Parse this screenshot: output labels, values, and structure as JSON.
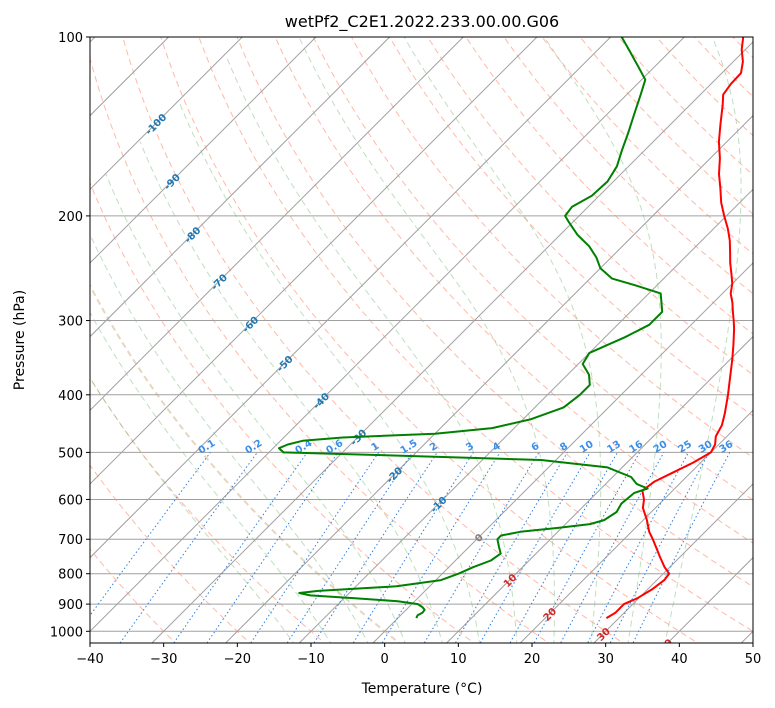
{
  "chart_data": {
    "type": "line",
    "subtype": "skew-t log-p",
    "title": "wetPf2_C2E1.2022.233.00.00.G06",
    "xlabel": "Temperature (°C)",
    "ylabel": "Pressure (hPa)",
    "xlim": [
      -40,
      50
    ],
    "ylim": [
      1050,
      100
    ],
    "y_scale": "log",
    "x_ticks": [
      "−40",
      "−30",
      "−20",
      "−10",
      "0",
      "10",
      "20",
      "30",
      "40",
      "50"
    ],
    "y_ticks": [
      "100",
      "200",
      "300",
      "400",
      "500",
      "600",
      "700",
      "800",
      "900",
      "1000"
    ],
    "grid": true,
    "series": [
      {
        "role": "temperature",
        "color": "#ff0000",
        "points": [
          [
            950,
            28.3
          ],
          [
            930,
            28.8
          ],
          [
            900,
            28.8
          ],
          [
            880,
            29.8
          ],
          [
            850,
            30.6
          ],
          [
            820,
            31.0
          ],
          [
            800,
            30.8
          ],
          [
            780,
            29.3
          ],
          [
            750,
            27.3
          ],
          [
            720,
            25.3
          ],
          [
            700,
            23.9
          ],
          [
            680,
            22.4
          ],
          [
            650,
            20.5
          ],
          [
            620,
            18.3
          ],
          [
            600,
            17.3
          ],
          [
            580,
            15.9
          ],
          [
            560,
            16.3
          ],
          [
            540,
            17.6
          ],
          [
            520,
            19.0
          ],
          [
            500,
            20.0
          ],
          [
            485,
            19.5
          ],
          [
            470,
            18.5
          ],
          [
            450,
            17.8
          ],
          [
            430,
            16.6
          ],
          [
            400,
            14.5
          ],
          [
            370,
            12.1
          ],
          [
            350,
            10.4
          ],
          [
            330,
            8.5
          ],
          [
            310,
            6.4
          ],
          [
            300,
            5.2
          ],
          [
            290,
            3.9
          ],
          [
            280,
            2.6
          ],
          [
            270,
            1.1
          ],
          [
            260,
            0.0
          ],
          [
            250,
            -1.5
          ],
          [
            240,
            -3.1
          ],
          [
            230,
            -4.6
          ],
          [
            220,
            -6.2
          ],
          [
            210,
            -8.1
          ],
          [
            200,
            -10.3
          ],
          [
            190,
            -12.5
          ],
          [
            180,
            -14.5
          ],
          [
            170,
            -16.7
          ],
          [
            160,
            -18.7
          ],
          [
            150,
            -21.1
          ],
          [
            140,
            -23.3
          ],
          [
            130,
            -25.6
          ],
          [
            125,
            -26.9
          ],
          [
            120,
            -27.3
          ],
          [
            115,
            -27.4
          ],
          [
            110,
            -28.7
          ],
          [
            105,
            -30.5
          ],
          [
            100,
            -32.0
          ]
        ]
      },
      {
        "role": "dewpoint",
        "color": "#008000",
        "points": [
          [
            950,
            2.5
          ],
          [
            940,
            2.3
          ],
          [
            930,
            2.6
          ],
          [
            920,
            2.5
          ],
          [
            910,
            1.8
          ],
          [
            900,
            0.8
          ],
          [
            890,
            -2.3
          ],
          [
            880,
            -8.5
          ],
          [
            870,
            -15.0
          ],
          [
            862,
            -16.8
          ],
          [
            855,
            -14.5
          ],
          [
            840,
            -4.5
          ],
          [
            820,
            0.7
          ],
          [
            800,
            2.2
          ],
          [
            780,
            3.3
          ],
          [
            760,
            4.8
          ],
          [
            740,
            5.2
          ],
          [
            720,
            4.0
          ],
          [
            700,
            2.8
          ],
          [
            690,
            2.8
          ],
          [
            680,
            4.9
          ],
          [
            670,
            9.5
          ],
          [
            660,
            13.3
          ],
          [
            650,
            14.7
          ],
          [
            630,
            15.3
          ],
          [
            610,
            14.8
          ],
          [
            600,
            14.9
          ],
          [
            585,
            15.1
          ],
          [
            575,
            16.3
          ],
          [
            565,
            14.2
          ],
          [
            550,
            12.5
          ],
          [
            530,
            8.0
          ],
          [
            515,
            -2.0
          ],
          [
            505,
            -25.0
          ],
          [
            500,
            -38.0
          ],
          [
            492,
            -39.2
          ],
          [
            485,
            -38.5
          ],
          [
            478,
            -37.0
          ],
          [
            472,
            -32.0
          ],
          [
            465,
            -20.0
          ],
          [
            455,
            -13.0
          ],
          [
            440,
            -9.0
          ],
          [
            420,
            -6.1
          ],
          [
            400,
            -5.6
          ],
          [
            385,
            -5.6
          ],
          [
            370,
            -7.1
          ],
          [
            355,
            -9.4
          ],
          [
            340,
            -10.0
          ],
          [
            320,
            -7.3
          ],
          [
            305,
            -5.7
          ],
          [
            290,
            -5.7
          ],
          [
            270,
            -8.4
          ],
          [
            262,
            -12.8
          ],
          [
            255,
            -17.0
          ],
          [
            245,
            -20.0
          ],
          [
            235,
            -22.0
          ],
          [
            225,
            -24.5
          ],
          [
            215,
            -27.7
          ],
          [
            205,
            -30.5
          ],
          [
            200,
            -31.9
          ],
          [
            193,
            -32.2
          ],
          [
            185,
            -31.0
          ],
          [
            175,
            -30.8
          ],
          [
            165,
            -31.6
          ],
          [
            155,
            -33.1
          ],
          [
            145,
            -34.6
          ],
          [
            135,
            -36.3
          ],
          [
            125,
            -38.1
          ],
          [
            118,
            -39.5
          ],
          [
            112,
            -42.3
          ],
          [
            106,
            -45.3
          ],
          [
            100,
            -48.5
          ]
        ]
      }
    ],
    "isotherm_labels": [
      "-100",
      "-90",
      "-80",
      "-70",
      "-60",
      "-50",
      "-40",
      "-30",
      "-20",
      "-10",
      "0",
      "10",
      "20",
      "30",
      "40"
    ],
    "mixing_ratio_labels": [
      "0.1",
      "0.2",
      "0.4",
      "0.6",
      "1",
      "1.5",
      "2",
      "3",
      "4",
      "6",
      "8",
      "10",
      "13",
      "16",
      "20",
      "25",
      "30",
      "36"
    ],
    "colors": {
      "temperature": "#ff0000",
      "dewpoint": "#008000",
      "isotherm_grid": "#a0a0a0",
      "isobar_grid": "#a0a0a0",
      "dry_adiabat": "#ff8060",
      "moist_adiabat": "#80c080",
      "mixing_ratio": "#3080e0",
      "isotherm_label_cold": "#1f77b4",
      "isotherm_label_zero": "#808080",
      "isotherm_label_warm": "#d62728"
    }
  }
}
